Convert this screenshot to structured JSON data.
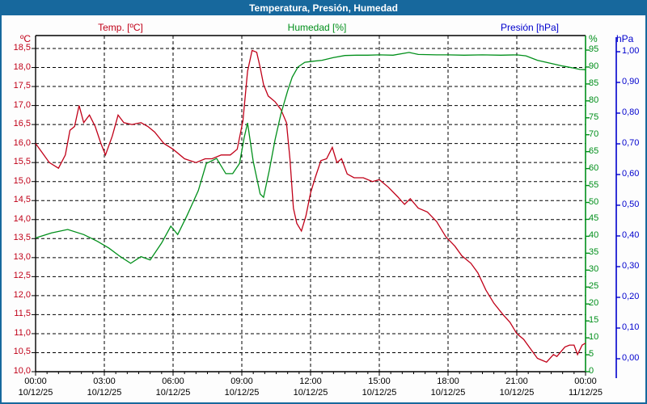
{
  "window": {
    "title": "Temperatura, Presión, Humedad"
  },
  "legend": [
    {
      "label": "Temp. [ºC]",
      "color": "#c00018"
    },
    {
      "label": "Humedad [%]",
      "color": "#008f1a"
    },
    {
      "label": "Presión [hPa]",
      "color": "#0000cd"
    }
  ],
  "axis_units": {
    "temperature": "ºC",
    "humidity": "%",
    "pressure": "hPa"
  },
  "chart_data": {
    "type": "line",
    "title": "Temperatura, Presión, Humedad",
    "grid": "dashed-black",
    "legend_position": "top",
    "x_axis": {
      "range_hours": [
        0,
        24
      ],
      "gridline_interval_hours": 3,
      "minor_tick_hours": 0.5,
      "label_times": [
        "00:00",
        "03:00",
        "06:00",
        "09:00",
        "12:00",
        "15:00",
        "18:00",
        "21:00",
        "00:00"
      ],
      "label_dates": [
        "10/12/25",
        "10/12/25",
        "10/12/25",
        "10/12/25",
        "10/12/25",
        "10/12/25",
        "10/12/25",
        "10/12/25",
        "11/12/25"
      ]
    },
    "y_axes": {
      "temperature": {
        "side": "left",
        "unit": "ºC",
        "min": 10.0,
        "max": 18.5,
        "tick_step": 0.5,
        "color": "#c00018",
        "ticks": [
          "18,5",
          "18,0",
          "17,5",
          "17,0",
          "16,5",
          "16,0",
          "15,5",
          "15,0",
          "14,5",
          "14,0",
          "13,5",
          "13,0",
          "12,5",
          "12,0",
          "11,5",
          "11,0",
          "10,5",
          "10,0"
        ]
      },
      "humidity": {
        "side": "right",
        "unit": "%",
        "min": 0,
        "max": 95,
        "tick_step": 5,
        "color": "#008f1a",
        "ticks": [
          "95",
          "90",
          "85",
          "80",
          "75",
          "70",
          "65",
          "60",
          "55",
          "50",
          "45",
          "40",
          "35",
          "30",
          "25",
          "20",
          "15",
          "10",
          "5",
          "0"
        ]
      },
      "pressure": {
        "side": "far-right",
        "unit": "hPa",
        "min": 0.0,
        "max": 1.0,
        "tick_step": 0.1,
        "color": "#0000cd",
        "ticks": [
          "1,00",
          "0,90",
          "0,80",
          "0,70",
          "0,60",
          "0,50",
          "0,40",
          "0,30",
          "0,20",
          "0,10",
          "0,00"
        ]
      }
    },
    "series": [
      {
        "name": "Temp. [ºC]",
        "axis": "temperature",
        "color": "#c00018",
        "x_hours": [
          0,
          0.3,
          0.6,
          1.0,
          1.3,
          1.5,
          1.7,
          1.9,
          2.1,
          2.35,
          2.6,
          2.85,
          3.05,
          3.35,
          3.6,
          3.85,
          4.2,
          4.6,
          4.9,
          5.2,
          5.6,
          6.0,
          6.5,
          7.0,
          7.4,
          7.7,
          8.1,
          8.5,
          8.8,
          9.05,
          9.25,
          9.45,
          9.65,
          9.8,
          9.95,
          10.15,
          10.45,
          10.7,
          10.95,
          11.1,
          11.25,
          11.4,
          11.6,
          11.8,
          12.0,
          12.2,
          12.45,
          12.7,
          12.95,
          13.15,
          13.35,
          13.6,
          13.9,
          14.3,
          14.7,
          15.0,
          15.4,
          15.8,
          16.1,
          16.35,
          16.7,
          17.1,
          17.5,
          17.9,
          18.3,
          18.6,
          19.0,
          19.3,
          19.65,
          20.0,
          20.4,
          20.7,
          21.0,
          21.3,
          21.6,
          21.9,
          22.1,
          22.3,
          22.6,
          22.75,
          23.1,
          23.3,
          23.5,
          23.65,
          23.85,
          24.0
        ],
        "values": [
          16.0,
          15.75,
          15.5,
          15.35,
          15.7,
          16.35,
          16.45,
          17.0,
          16.55,
          16.75,
          16.45,
          16.0,
          15.7,
          16.2,
          16.75,
          16.55,
          16.5,
          16.55,
          16.45,
          16.3,
          16.0,
          15.85,
          15.6,
          15.5,
          15.6,
          15.6,
          15.7,
          15.7,
          15.85,
          16.6,
          17.9,
          18.45,
          18.4,
          18.0,
          17.55,
          17.25,
          17.1,
          16.9,
          16.55,
          15.6,
          14.3,
          13.9,
          13.7,
          14.1,
          14.7,
          15.1,
          15.55,
          15.6,
          15.9,
          15.5,
          15.6,
          15.2,
          15.1,
          15.1,
          15.0,
          15.05,
          14.85,
          14.6,
          14.4,
          14.55,
          14.3,
          14.2,
          13.95,
          13.55,
          13.3,
          13.05,
          12.85,
          12.6,
          12.15,
          11.8,
          11.5,
          11.3,
          11.0,
          10.85,
          10.6,
          10.35,
          10.3,
          10.25,
          10.45,
          10.4,
          10.65,
          10.7,
          10.7,
          10.45,
          10.7,
          10.75
        ]
      },
      {
        "name": "Humedad [%]",
        "axis": "humidity",
        "color": "#008f1a",
        "x_hours": [
          0,
          0.7,
          1.4,
          2.1,
          2.7,
          3.2,
          3.7,
          4.15,
          4.6,
          5.0,
          5.5,
          5.9,
          6.2,
          6.6,
          7.1,
          7.45,
          7.9,
          8.3,
          8.6,
          8.9,
          9.1,
          9.25,
          9.5,
          9.8,
          9.95,
          10.2,
          10.45,
          10.7,
          11.0,
          11.2,
          11.45,
          11.75,
          12.1,
          12.5,
          13.0,
          13.5,
          14.0,
          14.5,
          15.0,
          15.6,
          16.3,
          16.7,
          17.5,
          18.0,
          18.7,
          19.5,
          20.3,
          21.0,
          21.4,
          21.9,
          22.4,
          23.0,
          23.4,
          23.75,
          24.0
        ],
        "values": [
          39.5,
          41,
          42,
          40.5,
          38.5,
          36.5,
          34,
          32,
          34,
          33,
          38,
          43,
          40.5,
          46,
          53.5,
          61.5,
          63,
          58.5,
          58.5,
          61.5,
          69,
          73.5,
          62,
          52.5,
          51.5,
          59.5,
          68.5,
          76,
          83,
          87,
          90,
          91.4,
          91.7,
          92,
          92.8,
          93.4,
          93.5,
          93.5,
          93.6,
          93.5,
          94.3,
          93.7,
          93.6,
          93.6,
          93.5,
          93.6,
          93.5,
          93.6,
          93.3,
          92,
          91.2,
          90.3,
          89.8,
          89.3,
          89.2
        ]
      },
      {
        "name": "Presión [hPa]",
        "axis": "pressure",
        "color": "#0000cd",
        "x_hours": [],
        "values": []
      }
    ]
  }
}
